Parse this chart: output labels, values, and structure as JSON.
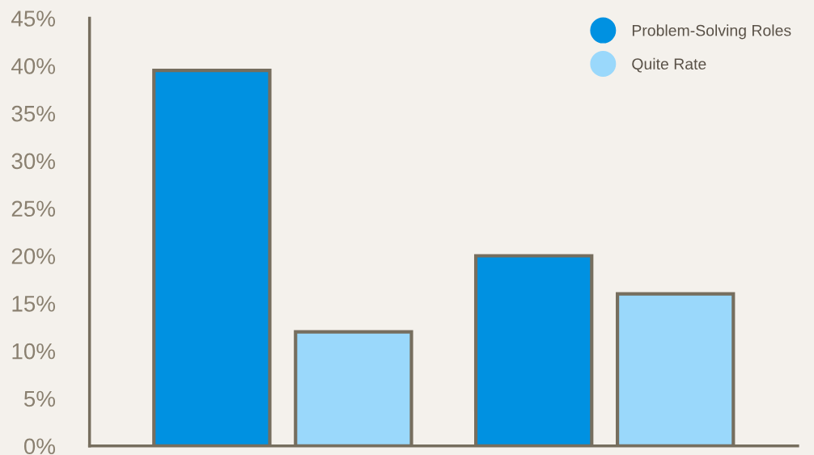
{
  "chart_data": {
    "type": "bar",
    "categories": [
      null,
      null
    ],
    "series": [
      {
        "name": "Problem-Solving Roles",
        "color": "#0091e1",
        "values": [
          39.5,
          20
        ]
      },
      {
        "name": "Quite Rate",
        "color": "#9ad8fb",
        "values": [
          12,
          16
        ]
      }
    ],
    "ylim": [
      0,
      45
    ],
    "yticks": [
      {
        "value": 0,
        "label": "0%"
      },
      {
        "value": 5,
        "label": "5%"
      },
      {
        "value": 10,
        "label": "10%"
      },
      {
        "value": 15,
        "label": "15%"
      },
      {
        "value": 20,
        "label": "20%"
      },
      {
        "value": 25,
        "label": "25%"
      },
      {
        "value": 30,
        "label": "30%"
      },
      {
        "value": 35,
        "label": "35%"
      },
      {
        "value": 40,
        "label": "40%"
      },
      {
        "value": 45,
        "label": "45%"
      }
    ],
    "tick_labels": "y",
    "grid": false,
    "legend": "top right",
    "marker": "circle"
  }
}
